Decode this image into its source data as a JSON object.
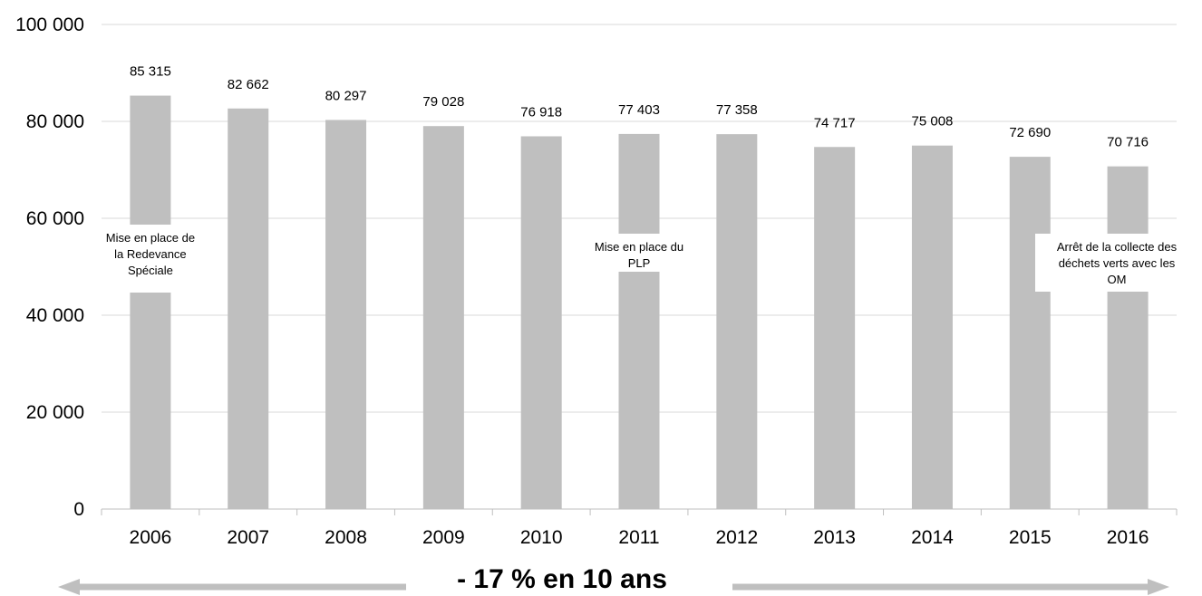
{
  "chart_data": {
    "type": "bar",
    "categories": [
      "2006",
      "2007",
      "2008",
      "2009",
      "2010",
      "2011",
      "2012",
      "2013",
      "2014",
      "2015",
      "2016"
    ],
    "values": [
      85315,
      82662,
      80297,
      79028,
      76918,
      77403,
      77358,
      74717,
      75008,
      72690,
      70716
    ],
    "value_labels": [
      "85 315",
      "82 662",
      "80 297",
      "79 028",
      "76 918",
      "77 403",
      "77 358",
      "74 717",
      "75 008",
      "72 690",
      "70 716"
    ],
    "ylim": [
      0,
      100000
    ],
    "yticks": [
      0,
      20000,
      40000,
      60000,
      80000,
      100000
    ],
    "ytick_labels": [
      "0",
      "20 000",
      "40 000",
      "60 000",
      "80 000",
      "100 000"
    ],
    "grid": true,
    "bar_color": "#bfbfbf",
    "grid_color": "#d9d9d9",
    "annotations": [
      {
        "category": "2006",
        "text": "Mise en place de\nla Redevance\nSpéciale"
      },
      {
        "category": "2011",
        "text": "Mise en place du\nPLP"
      },
      {
        "category": "2016",
        "text": "Arrêt de la collecte des\ndéchets verts avec les\nOM"
      }
    ],
    "trend_text": "- 17 % en 10 ans",
    "arrow_color": "#bfbfbf"
  }
}
